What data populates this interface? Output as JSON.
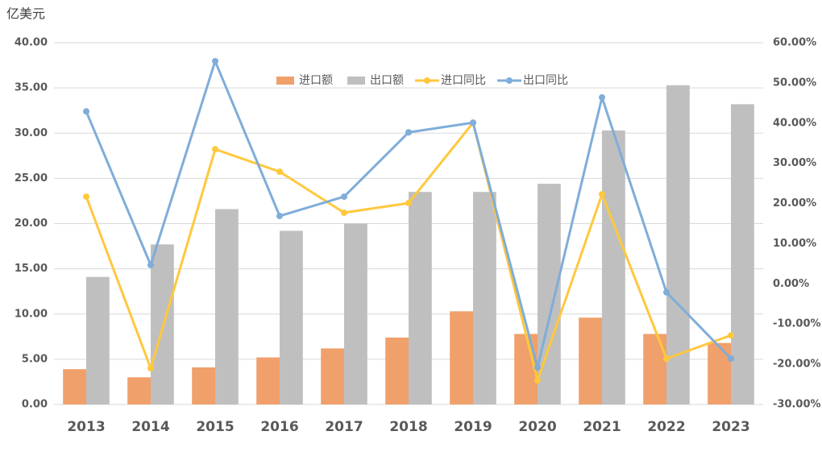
{
  "chart_data": {
    "type": "bar-line",
    "y_axis_title": "亿美元",
    "categories": [
      "2013",
      "2014",
      "2015",
      "2016",
      "2017",
      "2018",
      "2019",
      "2020",
      "2021",
      "2022",
      "2023"
    ],
    "series": [
      {
        "name": "进口额",
        "type": "bar",
        "color": "#f0a06b",
        "values": [
          3.9,
          3.0,
          4.1,
          5.2,
          6.2,
          7.4,
          10.3,
          7.8,
          9.6,
          7.8,
          6.8
        ]
      },
      {
        "name": "出口额",
        "type": "bar",
        "color": "#bfbfbf",
        "values": [
          14.1,
          17.7,
          21.6,
          19.2,
          20.0,
          23.5,
          23.5,
          24.4,
          30.3,
          35.3,
          33.2
        ]
      },
      {
        "name": "进口同比",
        "type": "line",
        "axis": "y2",
        "color": "#ffc83d",
        "values": [
          21.7,
          -21.0,
          33.5,
          27.9,
          17.7,
          20.1,
          40.1,
          -24.0,
          22.3,
          -18.6,
          -12.8
        ]
      },
      {
        "name": "出口同比",
        "type": "line",
        "axis": "y2",
        "color": "#7fadd9",
        "values": [
          42.9,
          4.7,
          55.4,
          16.9,
          21.7,
          37.7,
          40.1,
          -20.8,
          46.4,
          -2.1,
          -18.6
        ]
      }
    ],
    "ylim": [
      0,
      40
    ],
    "yticks": [
      {
        "value": 0,
        "label": "0.00"
      },
      {
        "value": 5,
        "label": "5.00"
      },
      {
        "value": 10,
        "label": "10.00"
      },
      {
        "value": 15,
        "label": "15.00"
      },
      {
        "value": 20,
        "label": "20.00"
      },
      {
        "value": 25,
        "label": "25.00"
      },
      {
        "value": 30,
        "label": "30.00"
      },
      {
        "value": 35,
        "label": "35.00"
      },
      {
        "value": 40,
        "label": "40.00"
      }
    ],
    "y2lim": [
      -30,
      60
    ],
    "y2ticks": [
      {
        "value": -30,
        "label": "-30.00%"
      },
      {
        "value": -20,
        "label": "-20.00%"
      },
      {
        "value": -10,
        "label": "-10.00%"
      },
      {
        "value": 0,
        "label": "0.00%"
      },
      {
        "value": 10,
        "label": "10.00%"
      },
      {
        "value": 20,
        "label": "20.00%"
      },
      {
        "value": 30,
        "label": "30.00%"
      },
      {
        "value": 40,
        "label": "40.00%"
      },
      {
        "value": 50,
        "label": "50.00%"
      },
      {
        "value": 60,
        "label": "60.00%"
      }
    ],
    "grid": true,
    "legend": "top"
  }
}
